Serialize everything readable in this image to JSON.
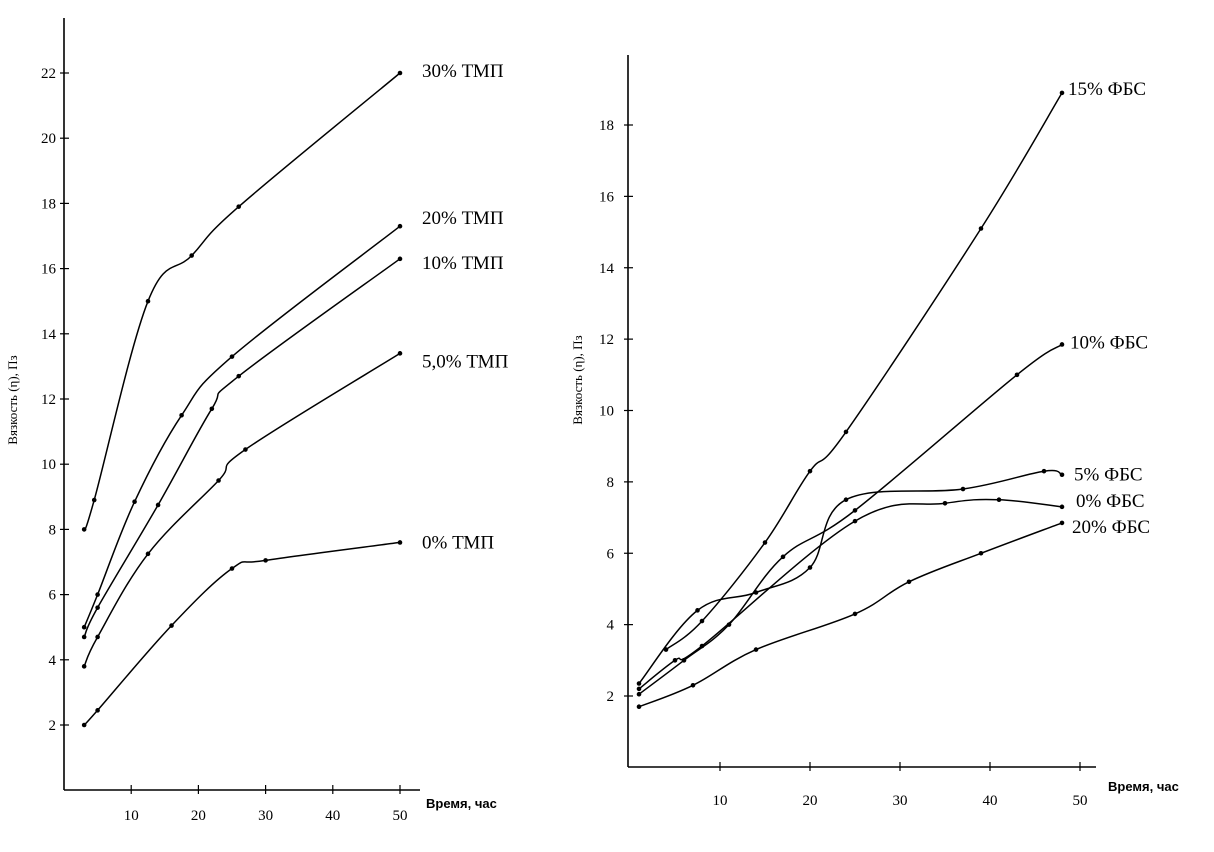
{
  "chart_data": [
    {
      "type": "line",
      "xlabel": "Время, час",
      "ylabel": "Вязкость (η), Пз",
      "xlim": [
        0,
        50
      ],
      "ylim": [
        0,
        23
      ],
      "x_ticks": [
        10,
        20,
        30,
        40,
        50
      ],
      "y_ticks": [
        2,
        4,
        6,
        8,
        10,
        12,
        14,
        16,
        18,
        20,
        22
      ],
      "grid": false,
      "series": [
        {
          "name": "30% ТМП",
          "points": [
            [
              3,
              8.0
            ],
            [
              4.5,
              8.9
            ],
            [
              12.5,
              15.0
            ],
            [
              19,
              16.4
            ],
            [
              26,
              17.9
            ],
            [
              50,
              22.0
            ]
          ]
        },
        {
          "name": "20% ТМП",
          "points": [
            [
              3,
              5.0
            ],
            [
              5,
              6.0
            ],
            [
              10.5,
              8.85
            ],
            [
              17.5,
              11.5
            ],
            [
              25,
              13.3
            ],
            [
              50,
              17.3
            ]
          ]
        },
        {
          "name": "10% ТМП",
          "points": [
            [
              3,
              4.7
            ],
            [
              5,
              5.6
            ],
            [
              14,
              8.75
            ],
            [
              22,
              11.7
            ],
            [
              26,
              12.7
            ],
            [
              50,
              16.3
            ]
          ]
        },
        {
          "name": "5,0% ТМП",
          "points": [
            [
              3,
              3.8
            ],
            [
              5,
              4.7
            ],
            [
              12.5,
              7.25
            ],
            [
              23,
              9.5
            ],
            [
              27,
              10.45
            ],
            [
              50,
              13.4
            ]
          ]
        },
        {
          "name": "0% ТМП",
          "points": [
            [
              3,
              2.0
            ],
            [
              5,
              2.45
            ],
            [
              16,
              5.05
            ],
            [
              25,
              6.8
            ],
            [
              30,
              7.05
            ],
            [
              50,
              7.6
            ]
          ]
        }
      ]
    },
    {
      "type": "line",
      "xlabel": "Время, час",
      "ylabel": "Вязкость (η), Пз",
      "xlim": [
        0,
        50
      ],
      "ylim": [
        0,
        20
      ],
      "x_ticks": [
        10,
        20,
        30,
        40,
        50
      ],
      "y_ticks": [
        2,
        4,
        6,
        8,
        10,
        12,
        14,
        16,
        18
      ],
      "grid": false,
      "series": [
        {
          "name": "15% ФБС",
          "points": [
            [
              4,
              3.3
            ],
            [
              8,
              4.1
            ],
            [
              15,
              6.3
            ],
            [
              20,
              8.3
            ],
            [
              24,
              9.4
            ],
            [
              39,
              15.1
            ],
            [
              48,
              18.9
            ]
          ]
        },
        {
          "name": "10% ФБС",
          "points": [
            [
              1,
              2.05
            ],
            [
              6,
              3.0
            ],
            [
              11,
              4.0
            ],
            [
              17,
              5.9
            ],
            [
              25,
              7.2
            ],
            [
              43,
              11.0
            ],
            [
              48,
              11.85
            ]
          ]
        },
        {
          "name": "5% ФБС",
          "points": [
            [
              1,
              2.35
            ],
            [
              7.5,
              4.4
            ],
            [
              14,
              4.9
            ],
            [
              20,
              5.6
            ],
            [
              24,
              7.5
            ],
            [
              37,
              7.8
            ],
            [
              46,
              8.3
            ],
            [
              48,
              8.2
            ]
          ]
        },
        {
          "name": "0% ФБС",
          "points": [
            [
              1,
              2.2
            ],
            [
              5,
              3.0
            ],
            [
              8,
              3.4
            ],
            [
              25,
              6.9
            ],
            [
              35,
              7.4
            ],
            [
              41,
              7.5
            ],
            [
              48,
              7.3
            ]
          ]
        },
        {
          "name": "20% ФБС",
          "points": [
            [
              1,
              1.7
            ],
            [
              7,
              2.3
            ],
            [
              14,
              3.3
            ],
            [
              25,
              4.3
            ],
            [
              31,
              5.2
            ],
            [
              39,
              6.0
            ],
            [
              48,
              6.85
            ]
          ]
        }
      ]
    }
  ]
}
